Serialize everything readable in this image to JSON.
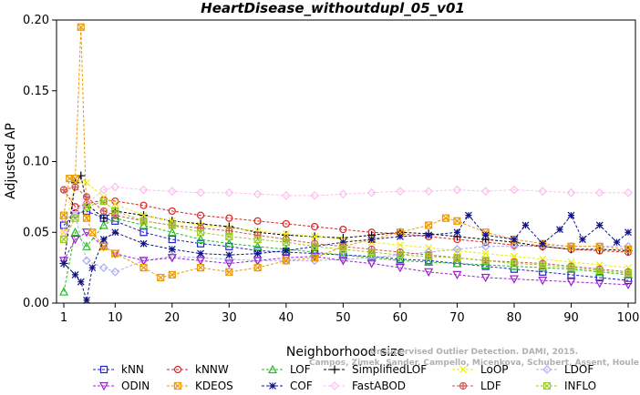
{
  "chart_data": {
    "type": "line",
    "title": "HeartDisease_withoutdupl_05_v01",
    "xlabel": "Neighborhood size",
    "ylabel": "Adjusted AP",
    "xlim": [
      0,
      100
    ],
    "ylim": [
      0,
      0.2
    ],
    "xticks": [
      "1",
      "10",
      "20",
      "30",
      "40",
      "50",
      "60",
      "70",
      "80",
      "90",
      "100"
    ],
    "yticks": [
      "0.00",
      "0.05",
      "0.10",
      "0.15",
      "0.20"
    ],
    "watermark": [
      "Unsupervised Outlier Detection. DAMI, 2015.",
      "Campos, Zimek, Sander, Campello, Micenkova, Schubert, Assent, Houle"
    ],
    "legend_position": "bottom",
    "series": [
      {
        "name": "kNN",
        "color": "#1f1fcc",
        "marker": "square",
        "x": [
          1,
          3,
          5,
          8,
          10,
          15,
          20,
          25,
          30,
          35,
          40,
          45,
          50,
          55,
          60,
          65,
          70,
          75,
          80,
          85,
          90,
          95,
          100
        ],
        "y": [
          0.055,
          0.063,
          0.065,
          0.06,
          0.058,
          0.05,
          0.045,
          0.042,
          0.04,
          0.037,
          0.036,
          0.035,
          0.034,
          0.033,
          0.031,
          0.03,
          0.028,
          0.026,
          0.024,
          0.022,
          0.02,
          0.018,
          0.016
        ]
      },
      {
        "name": "kNNW",
        "color": "#dd2222",
        "marker": "circle",
        "x": [
          1,
          3,
          5,
          8,
          10,
          15,
          20,
          25,
          30,
          35,
          40,
          45,
          50,
          55,
          60,
          65,
          70,
          75,
          80,
          85,
          90,
          95,
          100
        ],
        "y": [
          0.08,
          0.068,
          0.07,
          0.073,
          0.072,
          0.069,
          0.065,
          0.062,
          0.06,
          0.058,
          0.056,
          0.054,
          0.052,
          0.05,
          0.049,
          0.047,
          0.045,
          0.043,
          0.041,
          0.04,
          0.038,
          0.037,
          0.036
        ]
      },
      {
        "name": "LOF",
        "color": "#22bb22",
        "marker": "triangle",
        "x": [
          1,
          3,
          5,
          8,
          10,
          15,
          20,
          25,
          30,
          35,
          40,
          45,
          50,
          55,
          60,
          65,
          70,
          75,
          80,
          85,
          90,
          95,
          100
        ],
        "y": [
          0.008,
          0.05,
          0.04,
          0.055,
          0.06,
          0.055,
          0.05,
          0.045,
          0.042,
          0.04,
          0.038,
          0.036,
          0.034,
          0.032,
          0.03,
          0.029,
          0.028,
          0.027,
          0.026,
          0.025,
          0.024,
          0.022,
          0.02
        ]
      },
      {
        "name": "SimplifiedLOF",
        "color": "#000000",
        "marker": "plus",
        "x": [
          1,
          3,
          4,
          5,
          8,
          10,
          15,
          20,
          25,
          30,
          35,
          40,
          45,
          50,
          55,
          60,
          65,
          70,
          75,
          80,
          85,
          90,
          95,
          100
        ],
        "y": [
          0.028,
          0.085,
          0.09,
          0.07,
          0.06,
          0.065,
          0.062,
          0.058,
          0.056,
          0.054,
          0.05,
          0.048,
          0.047,
          0.046,
          0.048,
          0.05,
          0.049,
          0.047,
          0.045,
          0.043,
          0.04,
          0.038,
          0.038,
          0.037
        ]
      },
      {
        "name": "LoOP",
        "color": "#eeee00",
        "marker": "cross",
        "x": [
          1,
          3,
          5,
          8,
          10,
          15,
          20,
          25,
          30,
          35,
          40,
          45,
          50,
          55,
          60,
          65,
          70,
          75,
          80,
          85,
          90,
          95,
          100
        ],
        "y": [
          0.05,
          0.085,
          0.085,
          0.075,
          0.07,
          0.062,
          0.058,
          0.055,
          0.053,
          0.051,
          0.049,
          0.047,
          0.045,
          0.043,
          0.041,
          0.039,
          0.037,
          0.035,
          0.033,
          0.031,
          0.029,
          0.027,
          0.025
        ]
      },
      {
        "name": "LDOF",
        "color": "#aaaaee",
        "marker": "diamond",
        "x": [
          1,
          3,
          5,
          8,
          10,
          15,
          20,
          25,
          30,
          35,
          40,
          45,
          50,
          55,
          60,
          65,
          70,
          75,
          80,
          85,
          90,
          95,
          100
        ],
        "y": [
          0.06,
          0.062,
          0.03,
          0.025,
          0.022,
          0.03,
          0.033,
          0.032,
          0.031,
          0.03,
          0.03,
          0.03,
          0.031,
          0.032,
          0.034,
          0.036,
          0.038,
          0.04,
          0.04,
          0.041,
          0.04,
          0.04,
          0.04
        ]
      },
      {
        "name": "ODIN",
        "color": "#9922cc",
        "marker": "triangle-down",
        "x": [
          1,
          3,
          5,
          8,
          10,
          15,
          20,
          25,
          30,
          35,
          40,
          45,
          50,
          55,
          60,
          65,
          70,
          75,
          80,
          85,
          90,
          95,
          100
        ],
        "y": [
          0.03,
          0.045,
          0.05,
          0.04,
          0.035,
          0.03,
          0.032,
          0.03,
          0.028,
          0.03,
          0.032,
          0.033,
          0.03,
          0.028,
          0.025,
          0.022,
          0.02,
          0.018,
          0.017,
          0.016,
          0.015,
          0.014,
          0.013
        ]
      },
      {
        "name": "KDEOS",
        "color": "#ee9900",
        "marker": "square-x",
        "x": [
          1,
          2,
          3,
          4,
          5,
          6,
          8,
          10,
          15,
          18,
          20,
          25,
          30,
          35,
          40,
          45,
          50,
          55,
          60,
          65,
          68,
          70,
          75,
          80,
          85,
          90,
          95,
          100
        ],
        "y": [
          0.062,
          0.088,
          0.088,
          0.195,
          0.06,
          0.05,
          0.04,
          0.035,
          0.025,
          0.018,
          0.02,
          0.025,
          0.022,
          0.025,
          0.03,
          0.032,
          0.04,
          0.045,
          0.05,
          0.055,
          0.06,
          0.058,
          0.05,
          0.045,
          0.042,
          0.04,
          0.04,
          0.038
        ]
      },
      {
        "name": "COF",
        "color": "#111188",
        "marker": "star",
        "x": [
          1,
          3,
          4,
          5,
          6,
          8,
          10,
          15,
          20,
          25,
          30,
          35,
          40,
          45,
          50,
          55,
          60,
          65,
          70,
          72,
          75,
          80,
          82,
          85,
          88,
          90,
          92,
          95,
          98,
          100
        ],
        "y": [
          0.028,
          0.02,
          0.015,
          0.002,
          0.025,
          0.045,
          0.05,
          0.042,
          0.038,
          0.035,
          0.034,
          0.035,
          0.037,
          0.04,
          0.043,
          0.045,
          0.047,
          0.048,
          0.05,
          0.062,
          0.048,
          0.045,
          0.055,
          0.042,
          0.052,
          0.062,
          0.045,
          0.055,
          0.043,
          0.05
        ]
      },
      {
        "name": "FastABOD",
        "color": "#ffbbee",
        "marker": "diamond",
        "x": [
          1,
          3,
          5,
          8,
          10,
          15,
          20,
          25,
          30,
          35,
          40,
          45,
          50,
          55,
          60,
          65,
          70,
          75,
          80,
          85,
          90,
          95,
          100
        ],
        "y": [
          0.05,
          0.065,
          0.07,
          0.08,
          0.082,
          0.08,
          0.079,
          0.078,
          0.078,
          0.077,
          0.076,
          0.076,
          0.077,
          0.078,
          0.079,
          0.079,
          0.08,
          0.079,
          0.08,
          0.079,
          0.078,
          0.078,
          0.078
        ]
      },
      {
        "name": "LDF",
        "color": "#cc5555",
        "marker": "circle-plus",
        "x": [
          1,
          3,
          5,
          8,
          10,
          15,
          20,
          25,
          30,
          35,
          40,
          45,
          50,
          55,
          60,
          65,
          70,
          75,
          80,
          85,
          90,
          95,
          100
        ],
        "y": [
          0.08,
          0.082,
          0.075,
          0.065,
          0.062,
          0.058,
          0.055,
          0.053,
          0.051,
          0.048,
          0.045,
          0.042,
          0.04,
          0.038,
          0.036,
          0.034,
          0.032,
          0.03,
          0.029,
          0.028,
          0.026,
          0.024,
          0.022
        ]
      },
      {
        "name": "INFLO",
        "color": "#99cc22",
        "marker": "square-star",
        "x": [
          1,
          3,
          5,
          8,
          10,
          15,
          20,
          25,
          30,
          35,
          40,
          45,
          50,
          55,
          60,
          65,
          70,
          75,
          80,
          85,
          90,
          95,
          100
        ],
        "y": [
          0.045,
          0.06,
          0.068,
          0.072,
          0.065,
          0.058,
          0.055,
          0.05,
          0.047,
          0.045,
          0.043,
          0.04,
          0.038,
          0.036,
          0.034,
          0.033,
          0.032,
          0.03,
          0.028,
          0.027,
          0.025,
          0.023,
          0.021
        ]
      }
    ]
  }
}
